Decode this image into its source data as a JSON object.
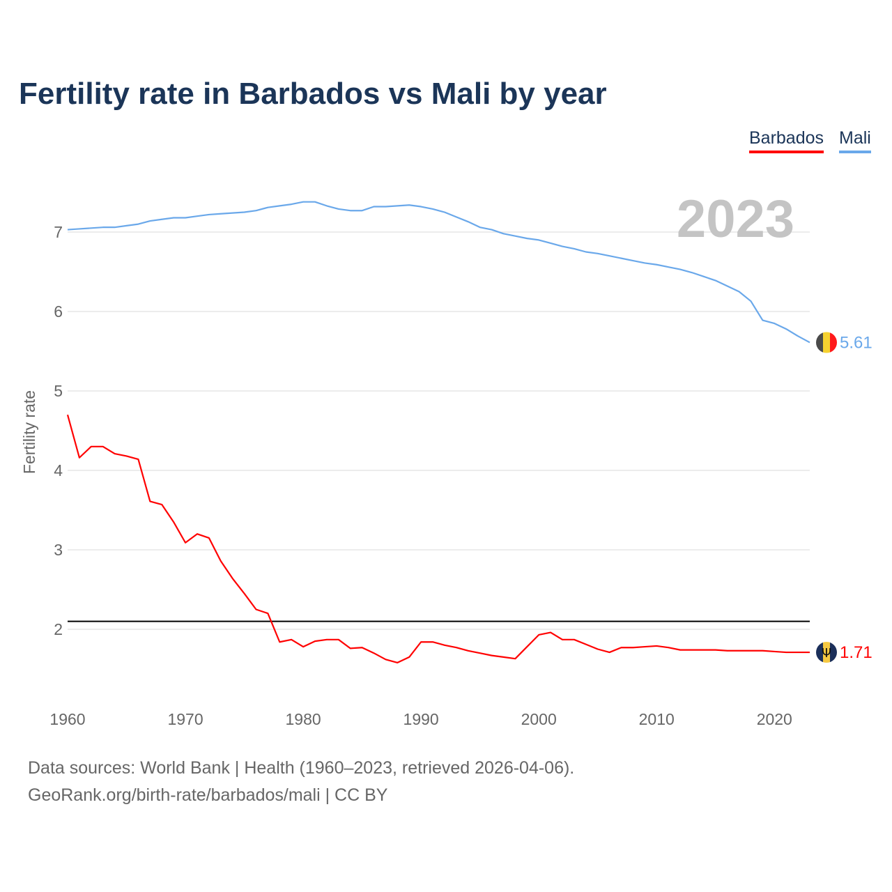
{
  "title": "Fertility rate in Barbados vs Mali by year",
  "legend": [
    {
      "label": "Barbados",
      "color": "#ff0000"
    },
    {
      "label": "Mali",
      "color": "#6aa8ea"
    }
  ],
  "year_label": "2023",
  "footer": {
    "line1": "Data sources: World Bank | Health (1960–2023, retrieved 2026-04-06).",
    "line2": "GeoRank.org/birth-rate/barbados/mali | CC BY"
  },
  "chart_data": {
    "type": "line",
    "title": "Fertility rate in Barbados vs Mali by year",
    "xlabel": "",
    "ylabel": "Fertility rate",
    "xlim": [
      1960,
      2023
    ],
    "ylim": [
      1.2,
      7.8
    ],
    "xticks": [
      1960,
      1970,
      1980,
      1990,
      2000,
      2010,
      2020
    ],
    "yticks": [
      2,
      3,
      4,
      5,
      6,
      7
    ],
    "grid": true,
    "legend_position": "top-right",
    "reference_line": {
      "y": 2.1,
      "color": "#000000"
    },
    "x": [
      1960,
      1961,
      1962,
      1963,
      1964,
      1965,
      1966,
      1967,
      1968,
      1969,
      1970,
      1971,
      1972,
      1973,
      1974,
      1975,
      1976,
      1977,
      1978,
      1979,
      1980,
      1981,
      1982,
      1983,
      1984,
      1985,
      1986,
      1987,
      1988,
      1989,
      1990,
      1991,
      1992,
      1993,
      1994,
      1995,
      1996,
      1997,
      1998,
      1999,
      2000,
      2001,
      2002,
      2003,
      2004,
      2005,
      2006,
      2007,
      2008,
      2009,
      2010,
      2011,
      2012,
      2013,
      2014,
      2015,
      2016,
      2017,
      2018,
      2019,
      2020,
      2021,
      2022,
      2023
    ],
    "series": [
      {
        "name": "Barbados",
        "color": "#ff0000",
        "end_label": "1.71",
        "values": [
          4.7,
          4.16,
          4.3,
          4.3,
          4.21,
          4.18,
          4.14,
          3.61,
          3.57,
          3.35,
          3.09,
          3.2,
          3.15,
          2.86,
          2.64,
          2.45,
          2.25,
          2.2,
          1.84,
          1.87,
          1.78,
          1.85,
          1.87,
          1.87,
          1.76,
          1.77,
          1.7,
          1.62,
          1.58,
          1.65,
          1.84,
          1.84,
          1.8,
          1.77,
          1.73,
          1.7,
          1.67,
          1.65,
          1.63,
          1.78,
          1.93,
          1.96,
          1.87,
          1.87,
          1.81,
          1.75,
          1.71,
          1.77,
          1.77,
          1.78,
          1.79,
          1.77,
          1.74,
          1.74,
          1.74,
          1.74,
          1.73,
          1.73,
          1.73,
          1.73,
          1.72,
          1.71,
          1.71,
          1.71
        ]
      },
      {
        "name": "Mali",
        "color": "#6aa8ea",
        "end_label": "5.61",
        "values": [
          7.03,
          7.04,
          7.05,
          7.06,
          7.06,
          7.08,
          7.1,
          7.14,
          7.16,
          7.18,
          7.18,
          7.2,
          7.22,
          7.23,
          7.24,
          7.25,
          7.27,
          7.31,
          7.33,
          7.35,
          7.38,
          7.38,
          7.33,
          7.29,
          7.27,
          7.27,
          7.32,
          7.32,
          7.33,
          7.34,
          7.32,
          7.29,
          7.25,
          7.19,
          7.13,
          7.06,
          7.03,
          6.98,
          6.95,
          6.92,
          6.9,
          6.86,
          6.82,
          6.79,
          6.75,
          6.73,
          6.7,
          6.67,
          6.64,
          6.61,
          6.59,
          6.56,
          6.53,
          6.49,
          6.44,
          6.39,
          6.32,
          6.25,
          6.13,
          5.89,
          5.85,
          5.78,
          5.69,
          5.61
        ]
      }
    ]
  }
}
